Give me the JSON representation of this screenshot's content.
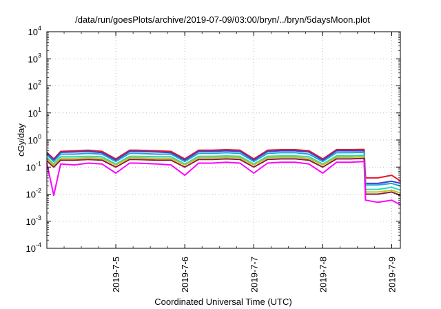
{
  "chart_data": {
    "type": "line",
    "title": "/data/run/goesPlots/archive/2019-07-09/03:00/bryn/../bryn/5daysMoon.plot",
    "xlabel": "Coordinated Universal Time (UTC)",
    "ylabel": "cGy/day",
    "yscale": "log",
    "ylim": [
      0.0001,
      10000
    ],
    "xlim": [
      "2019-07-04T00:00",
      "2019-07-09T03:00"
    ],
    "grid": true,
    "legend": "none",
    "yticks": [
      {
        "base": "10",
        "exp": "-4"
      },
      {
        "base": "10",
        "exp": "-3"
      },
      {
        "base": "10",
        "exp": "-2"
      },
      {
        "base": "10",
        "exp": "-1"
      },
      {
        "base": "10",
        "exp": "0"
      },
      {
        "base": "10",
        "exp": "1"
      },
      {
        "base": "10",
        "exp": "2"
      },
      {
        "base": "10",
        "exp": "3"
      },
      {
        "base": "10",
        "exp": "4"
      }
    ],
    "xticks": [
      "2019-7-5",
      "2019-7-6",
      "2019-7-7",
      "2019-7-8",
      "2019-7-9"
    ],
    "x": [
      4.0,
      4.1,
      4.2,
      4.4,
      4.6,
      4.8,
      5.0,
      5.2,
      5.3,
      5.6,
      5.8,
      6.0,
      6.2,
      6.4,
      6.6,
      6.8,
      7.0,
      7.2,
      7.4,
      7.6,
      7.8,
      8.0,
      8.2,
      8.4,
      8.6,
      8.62,
      8.8,
      9.0,
      9.13
    ],
    "series": [
      {
        "color": "#e8172a",
        "values": [
          0.35,
          0.2,
          0.38,
          0.4,
          0.42,
          0.38,
          0.2,
          0.42,
          0.42,
          0.4,
          0.38,
          0.2,
          0.42,
          0.42,
          0.44,
          0.42,
          0.2,
          0.42,
          0.44,
          0.44,
          0.4,
          0.2,
          0.44,
          0.44,
          0.45,
          0.04,
          0.04,
          0.05,
          0.03
        ]
      },
      {
        "color": "#3b40c9",
        "values": [
          0.32,
          0.18,
          0.35,
          0.36,
          0.38,
          0.34,
          0.18,
          0.38,
          0.38,
          0.36,
          0.34,
          0.18,
          0.38,
          0.38,
          0.4,
          0.38,
          0.18,
          0.38,
          0.4,
          0.4,
          0.36,
          0.18,
          0.4,
          0.4,
          0.4,
          0.025,
          0.025,
          0.03,
          0.025
        ]
      },
      {
        "color": "#1aa7d8",
        "values": [
          0.28,
          0.16,
          0.3,
          0.3,
          0.32,
          0.3,
          0.16,
          0.32,
          0.32,
          0.3,
          0.3,
          0.16,
          0.32,
          0.32,
          0.34,
          0.32,
          0.16,
          0.32,
          0.34,
          0.34,
          0.3,
          0.16,
          0.34,
          0.34,
          0.35,
          0.022,
          0.022,
          0.025,
          0.02
        ]
      },
      {
        "color": "#2fd6c0",
        "values": [
          0.22,
          0.13,
          0.24,
          0.24,
          0.25,
          0.24,
          0.13,
          0.25,
          0.25,
          0.24,
          0.24,
          0.13,
          0.25,
          0.25,
          0.26,
          0.25,
          0.13,
          0.25,
          0.26,
          0.26,
          0.24,
          0.13,
          0.26,
          0.26,
          0.27,
          0.015,
          0.015,
          0.018,
          0.014
        ]
      },
      {
        "color": "#c0c417",
        "values": [
          0.2,
          0.12,
          0.21,
          0.21,
          0.22,
          0.21,
          0.12,
          0.22,
          0.22,
          0.21,
          0.21,
          0.12,
          0.22,
          0.22,
          0.23,
          0.22,
          0.12,
          0.22,
          0.23,
          0.23,
          0.21,
          0.12,
          0.23,
          0.23,
          0.24,
          0.012,
          0.012,
          0.014,
          0.011
        ]
      },
      {
        "color": "#8a1d3d",
        "values": [
          0.17,
          0.1,
          0.18,
          0.18,
          0.19,
          0.18,
          0.1,
          0.19,
          0.19,
          0.18,
          0.18,
          0.1,
          0.19,
          0.19,
          0.2,
          0.19,
          0.1,
          0.19,
          0.2,
          0.2,
          0.18,
          0.1,
          0.2,
          0.2,
          0.21,
          0.01,
          0.01,
          0.012,
          0.009
        ]
      },
      {
        "color": "#ff00ff",
        "values": [
          0.14,
          0.009,
          0.13,
          0.12,
          0.14,
          0.13,
          0.06,
          0.14,
          0.14,
          0.13,
          0.12,
          0.05,
          0.14,
          0.14,
          0.15,
          0.14,
          0.06,
          0.14,
          0.15,
          0.15,
          0.13,
          0.06,
          0.15,
          0.15,
          0.16,
          0.006,
          0.005,
          0.006,
          0.004
        ]
      }
    ]
  }
}
